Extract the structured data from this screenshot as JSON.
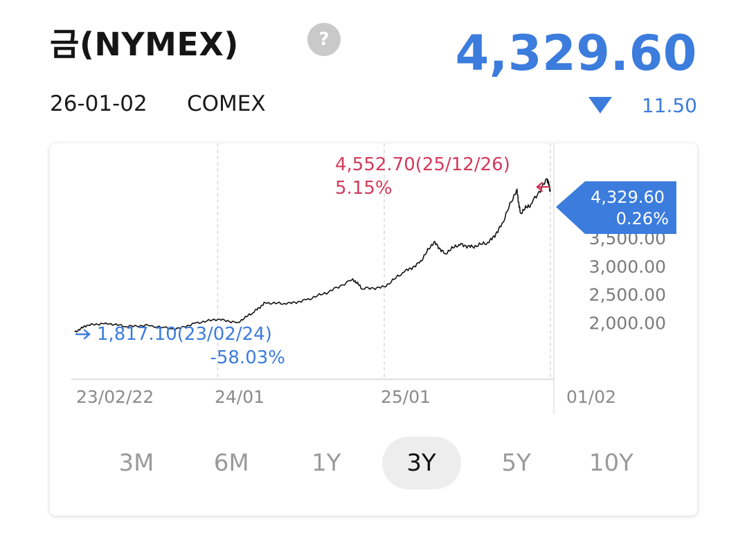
{
  "header": {
    "title": "금(NYMEX)",
    "help_label": "?",
    "price": "4,329.60",
    "date": "26-01-02",
    "exchange": "COMEX",
    "change": "11.50",
    "direction": "down"
  },
  "colors": {
    "accent_blue": "#3b7cdd",
    "high_red": "#d23a5a",
    "line": "#111111"
  },
  "ranges": [
    {
      "label": "3M",
      "active": false
    },
    {
      "label": "6M",
      "active": false
    },
    {
      "label": "1Y",
      "active": false
    },
    {
      "label": "3Y",
      "active": true
    },
    {
      "label": "5Y",
      "active": false
    },
    {
      "label": "10Y",
      "active": false
    }
  ],
  "chart_data": {
    "type": "line",
    "x_tick_labels": [
      "23/02/22",
      "24/01",
      "25/01",
      "01/02"
    ],
    "y_tick_labels": [
      "3,500.00",
      "3,000.00",
      "2,500.00",
      "2,000.00"
    ],
    "y_ticks": [
      3500,
      3000,
      2500,
      2000
    ],
    "high_annotation": {
      "line1": "4,552.70(25/12/26)",
      "line2": "5.15%",
      "value": 4552.7,
      "date": "25/12/26"
    },
    "low_annotation": {
      "line1": "1,817.10(23/02/24)",
      "line2": "-58.03%",
      "value": 1817.1,
      "date": "23/02/24"
    },
    "current": {
      "value_label": "4,329.60",
      "pct_label": "0.26%",
      "value": 4329.6
    },
    "series": [
      {
        "x": [
          "2023-02-22",
          "2023-03-20",
          "2023-05-01",
          "2023-06-15",
          "2023-08-01",
          "2023-10-01",
          "2023-11-15",
          "2024-01-02",
          "2024-02-15",
          "2024-03-20",
          "2024-04-15",
          "2024-06-01",
          "2024-07-15",
          "2024-09-01",
          "2024-10-25",
          "2024-11-15",
          "2025-01-02",
          "2025-02-15",
          "2025-03-20",
          "2025-04-21",
          "2025-05-15",
          "2025-06-15",
          "2025-07-15",
          "2025-08-20",
          "2025-09-15",
          "2025-10-20",
          "2025-10-28",
          "2025-11-20",
          "2025-12-26",
          "2026-01-02"
        ],
        "y": [
          1840,
          1950,
          2000,
          1930,
          1960,
          1880,
          2000,
          2060,
          2010,
          2180,
          2360,
          2330,
          2410,
          2540,
          2780,
          2600,
          2640,
          2900,
          3060,
          3430,
          3230,
          3390,
          3350,
          3420,
          3700,
          4360,
          3950,
          4100,
          4552.7,
          4329.6
        ]
      }
    ],
    "ylim": [
      1000,
      4900
    ],
    "xlim": [
      "2023-02-22",
      "2026-01-02"
    ]
  }
}
